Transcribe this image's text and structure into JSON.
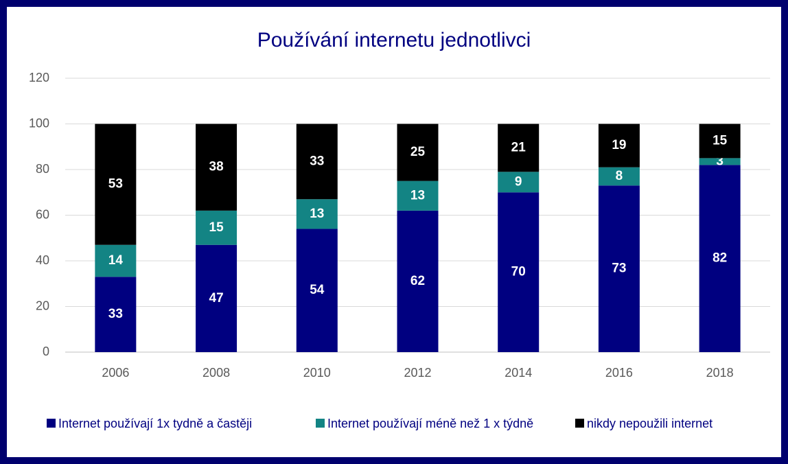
{
  "chart_data": {
    "type": "stacked_bar",
    "title": "Používání internetu jednotlivci",
    "categories": [
      "2006",
      "2008",
      "2010",
      "2012",
      "2014",
      "2016",
      "2018"
    ],
    "series": [
      {
        "name": "Internet používají 1x tydně a častěji",
        "color": "#000080",
        "values": [
          33,
          47,
          54,
          62,
          70,
          73,
          82
        ]
      },
      {
        "name": "Internet používají méně než 1 x týdně",
        "color": "#138484",
        "values": [
          14,
          15,
          13,
          13,
          9,
          8,
          3
        ]
      },
      {
        "name": "nikdy nepoužili internet",
        "color": "#000000",
        "values": [
          53,
          38,
          33,
          25,
          21,
          19,
          15
        ]
      }
    ],
    "ylim": [
      0,
      120
    ],
    "yticks": [
      0,
      20,
      40,
      60,
      80,
      100,
      120
    ],
    "grid": true,
    "legend": "bottom"
  }
}
